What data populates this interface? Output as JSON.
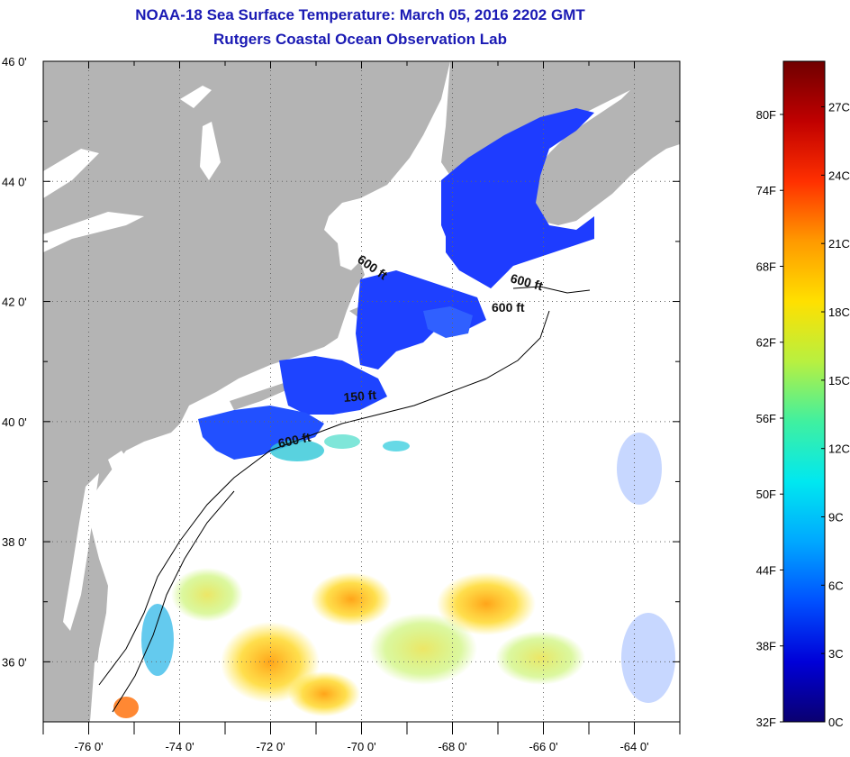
{
  "header": {
    "title": "NOAA-18 Sea Surface Temperature:  March 05, 2016 2202 GMT",
    "subtitle": "Rutgers Coastal Ocean Observation Lab"
  },
  "axes": {
    "lat_labels": [
      "46 0'",
      "44 0'",
      "42 0'",
      "40 0'",
      "38 0'",
      "36 0'"
    ],
    "lon_labels": [
      "-76 0'",
      "-74 0'",
      "-72 0'",
      "-70 0'",
      "-68 0'",
      "-66 0'",
      "-64 0'"
    ],
    "lat_range": [
      35,
      46
    ],
    "lon_range": [
      -77,
      -63
    ],
    "grid": "dotted"
  },
  "contour_labels": [
    "600 ft",
    "600 ft",
    "600 ft",
    "150 ft",
    "600 ft"
  ],
  "colorbar": {
    "fahrenheit_labels": [
      "80F",
      "74F",
      "68F",
      "62F",
      "56F",
      "50F",
      "44F",
      "38F",
      "32F"
    ],
    "celsius_labels": [
      "27C",
      "24C",
      "21C",
      "18C",
      "15C",
      "12C",
      "9C",
      "6C",
      "3C",
      "0C"
    ],
    "range_c": [
      0,
      29
    ],
    "colors": [
      "#0a0070",
      "#0000d8",
      "#0050ff",
      "#00a8ff",
      "#00e8f0",
      "#40f0a0",
      "#b8f040",
      "#ffe000",
      "#ff9a00",
      "#ff3000",
      "#c00000",
      "#700000"
    ]
  },
  "colors": {
    "land": "#b4b4b4",
    "water": "#ffffff",
    "title": "#1a1ab4",
    "cold_sst": "#1e3cff"
  }
}
